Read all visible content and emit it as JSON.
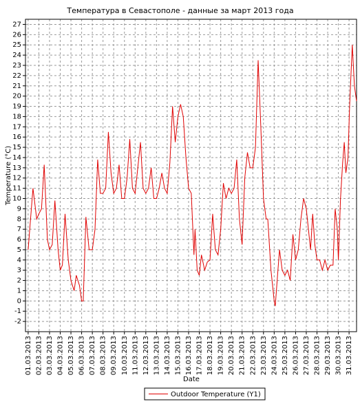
{
  "chart_data": {
    "type": "line",
    "title": "Температура в Севастополе - данные за март 2013 года",
    "x_label": "Date",
    "y_label": "Temperature (°C)",
    "xlim": [
      0.75,
      31.7
    ],
    "ylim": [
      -3,
      27.5
    ],
    "xticks": [
      {
        "value": 1,
        "label": "01.03.2013"
      },
      {
        "value": 2,
        "label": "02.03.2013"
      },
      {
        "value": 3,
        "label": "03.03.2013"
      },
      {
        "value": 4,
        "label": "04.03.2013"
      },
      {
        "value": 5,
        "label": "05.03.2013"
      },
      {
        "value": 6,
        "label": "06.03.2013"
      },
      {
        "value": 7,
        "label": "07.03.2013"
      },
      {
        "value": 8,
        "label": "08.03.2013"
      },
      {
        "value": 9,
        "label": "09.03.2013"
      },
      {
        "value": 10,
        "label": "10.03.2013"
      },
      {
        "value": 11,
        "label": "11.03.2013"
      },
      {
        "value": 12,
        "label": "12.03.2013"
      },
      {
        "value": 13,
        "label": "13.03.2013"
      },
      {
        "value": 14,
        "label": "14.03.2013"
      },
      {
        "value": 15,
        "label": "15.03.2013"
      },
      {
        "value": 16,
        "label": "16.03.2013"
      },
      {
        "value": 17,
        "label": "17.03.2013"
      },
      {
        "value": 18,
        "label": "18.03.2013"
      },
      {
        "value": 19,
        "label": "19.03.2013"
      },
      {
        "value": 20,
        "label": "20.03.2013"
      },
      {
        "value": 21,
        "label": "21.03.2013"
      },
      {
        "value": 22,
        "label": "22.03.2013"
      },
      {
        "value": 23,
        "label": "23.03.2013"
      },
      {
        "value": 24,
        "label": "24.03.2013"
      },
      {
        "value": 25,
        "label": "25.03.2013"
      },
      {
        "value": 26,
        "label": "26.03.2013"
      },
      {
        "value": 27,
        "label": "27.03.2013"
      },
      {
        "value": 28,
        "label": "28.03.2013"
      },
      {
        "value": 29,
        "label": "29.03.2013"
      },
      {
        "value": 30,
        "label": "30.03.2013"
      },
      {
        "value": 31,
        "label": "31.03.2013"
      }
    ],
    "yticks": [
      -2,
      -1,
      0,
      1,
      2,
      3,
      4,
      5,
      6,
      7,
      8,
      9,
      10,
      11,
      12,
      13,
      14,
      15,
      16,
      17,
      18,
      19,
      20,
      21,
      22,
      23,
      24,
      25,
      26,
      27
    ],
    "grid": true,
    "legend": "bottom",
    "series": [
      {
        "name": "Outdoor Temperature (Y1)",
        "color": "#e00000",
        "x": [
          1,
          1.45,
          1.8,
          2,
          2.25,
          2.5,
          2.8,
          3,
          3.25,
          3.5,
          3.8,
          4,
          4.2,
          4.45,
          4.75,
          5,
          5.3,
          5.5,
          5.8,
          6,
          6.15,
          6.4,
          6.7,
          7,
          7.25,
          7.5,
          7.75,
          8,
          8.25,
          8.5,
          8.75,
          9,
          9.25,
          9.5,
          9.75,
          10,
          10.25,
          10.5,
          10.75,
          11,
          11.25,
          11.5,
          11.75,
          12,
          12.25,
          12.5,
          12.75,
          13,
          13.25,
          13.5,
          13.75,
          14,
          14.25,
          14.5,
          14.75,
          15,
          15.25,
          15.5,
          15.75,
          16,
          16.25,
          16.5,
          16.6,
          16.8,
          17,
          17.2,
          17.5,
          17.75,
          18,
          18.25,
          18.5,
          18.75,
          19,
          19.25,
          19.5,
          19.75,
          20,
          20.25,
          20.5,
          20.75,
          21,
          21.25,
          21.5,
          21.75,
          22,
          22.25,
          22.5,
          22.75,
          23,
          23.25,
          23.4,
          23.7,
          24,
          24.1,
          24.35,
          24.5,
          24.75,
          25,
          25.25,
          25.5,
          25.75,
          26,
          26.25,
          26.5,
          26.75,
          27,
          27.25,
          27.4,
          27.6,
          27.8,
          28,
          28.25,
          28.5,
          28.75,
          29,
          29.25,
          29.5,
          29.7,
          29.9,
          30,
          30.2,
          30.4,
          30.55,
          30.7,
          30.9,
          31.05,
          31.3,
          31.5,
          31.7
        ],
        "values": [
          5,
          11,
          8,
          8.5,
          9,
          13.3,
          6,
          5,
          5.5,
          9.8,
          5,
          3,
          3.5,
          8.5,
          4,
          2,
          1,
          2.5,
          1.5,
          0,
          0,
          8.2,
          5,
          5,
          7,
          13.8,
          10.5,
          10.5,
          11,
          16.5,
          12.5,
          10.5,
          11,
          13.3,
          10,
          10,
          12,
          15.8,
          11,
          10.5,
          13,
          15.5,
          11,
          10.5,
          11,
          13,
          10,
          10,
          11,
          12.5,
          11,
          10.5,
          13.5,
          19,
          15.5,
          18,
          19.2,
          18,
          14,
          11,
          10.5,
          4.5,
          7,
          3,
          2.5,
          4.5,
          3,
          3.8,
          4,
          8.5,
          5,
          4.5,
          7,
          11.5,
          10,
          11,
          10.5,
          11,
          13.8,
          8,
          5.5,
          12,
          14.5,
          13,
          13,
          15,
          23.5,
          17,
          10,
          8,
          8,
          3,
          0,
          -0.5,
          3,
          5,
          3,
          2.5,
          3,
          2,
          6.5,
          4,
          5,
          8,
          10,
          9,
          6.5,
          5,
          8.5,
          5.5,
          4,
          4,
          3,
          4,
          3,
          3.5,
          3.5,
          9,
          7,
          4,
          10,
          13.5,
          15.5,
          12.5,
          14,
          19,
          25,
          21,
          19.5
        ]
      }
    ]
  }
}
